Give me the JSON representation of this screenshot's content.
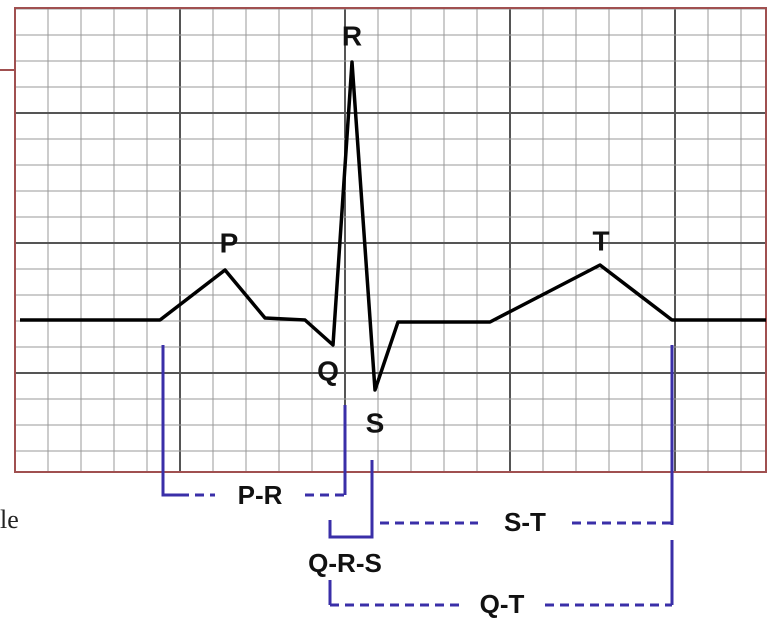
{
  "waves": {
    "p": "P",
    "q": "Q",
    "r": "R",
    "s": "S",
    "t": "T"
  },
  "intervals": {
    "pr": "P-R",
    "qrs": "Q-R-S",
    "st": "S-T",
    "qt": "Q-T"
  },
  "side_text": "le"
}
